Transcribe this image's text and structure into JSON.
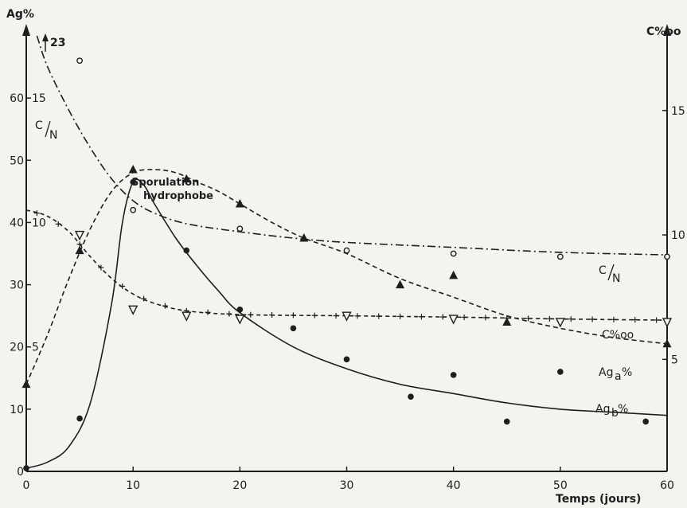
{
  "chart_data": {
    "type": "line",
    "xlabel": "Temps (jours)",
    "ylabel_left": "Ag%",
    "ylabel_left_inner": "C/N",
    "ylabel_right": "C%oo",
    "left_top_marker": "23",
    "x_ticks": [
      "0",
      "10",
      "20",
      "30",
      "40",
      "50",
      "60"
    ],
    "y_ticks_left": [
      "0",
      "10",
      "20",
      "30",
      "40",
      "50",
      "60"
    ],
    "cn_ticks": [
      "5",
      "10",
      "15"
    ],
    "y_ticks_right": [
      "5",
      "10",
      "15"
    ],
    "xlim": [
      0,
      60
    ],
    "ylim_left": [
      0,
      70
    ],
    "annotation": [
      "Sporulation",
      "hydrophobe"
    ],
    "grid": false,
    "series": [
      {
        "name": "Ag_b %",
        "label_parts": [
          "Ag",
          "b",
          " %"
        ],
        "marker": "filled-circle",
        "line": "solid",
        "points": [
          [
            0,
            0.5
          ],
          [
            5,
            8.5
          ],
          [
            10,
            46.5
          ],
          [
            15,
            35.5
          ],
          [
            20,
            26
          ],
          [
            25,
            23
          ],
          [
            30,
            18
          ],
          [
            36,
            12
          ],
          [
            40,
            15.5
          ],
          [
            45,
            8
          ],
          [
            50,
            16
          ],
          [
            58,
            8
          ]
        ],
        "curve": [
          [
            0,
            0.5
          ],
          [
            2,
            1.5
          ],
          [
            4,
            4
          ],
          [
            6,
            11
          ],
          [
            8,
            27
          ],
          [
            9,
            40
          ],
          [
            10,
            46.5
          ],
          [
            11,
            46
          ],
          [
            12,
            43
          ],
          [
            14,
            37.5
          ],
          [
            16,
            33
          ],
          [
            18,
            29
          ],
          [
            20,
            25.5
          ],
          [
            25,
            20
          ],
          [
            30,
            16.5
          ],
          [
            35,
            14
          ],
          [
            40,
            12.5
          ],
          [
            45,
            11
          ],
          [
            50,
            10
          ],
          [
            55,
            9.5
          ],
          [
            60,
            9
          ]
        ]
      },
      {
        "name": "Ag_a %",
        "label_parts": [
          "Ag",
          "a",
          "%"
        ],
        "marker": "filled-triangle",
        "line": "dashed",
        "points": [
          [
            0,
            14
          ],
          [
            5,
            35.5
          ],
          [
            10,
            48.5
          ],
          [
            15,
            47
          ],
          [
            20,
            43
          ],
          [
            26,
            37.5
          ],
          [
            35,
            30
          ],
          [
            40,
            31.5
          ],
          [
            45,
            24
          ],
          [
            60,
            20.5
          ]
        ],
        "curve": [
          [
            0,
            14
          ],
          [
            2,
            22
          ],
          [
            4,
            31
          ],
          [
            6,
            39
          ],
          [
            8,
            45
          ],
          [
            10,
            48
          ],
          [
            12,
            48.5
          ],
          [
            14,
            48
          ],
          [
            16,
            46.5
          ],
          [
            18,
            45
          ],
          [
            20,
            43
          ],
          [
            23,
            40
          ],
          [
            26,
            37.5
          ],
          [
            30,
            35
          ],
          [
            35,
            31
          ],
          [
            40,
            28
          ],
          [
            45,
            25
          ],
          [
            50,
            23
          ],
          [
            55,
            21.5
          ],
          [
            60,
            20.5
          ]
        ]
      },
      {
        "name": "C%oo",
        "marker": "open-triangle-down",
        "line": "dash-plus",
        "points": [
          [
            5,
            38
          ],
          [
            10,
            26
          ],
          [
            15,
            25
          ],
          [
            20,
            24.5
          ],
          [
            30,
            25
          ],
          [
            40,
            24.5
          ],
          [
            50,
            24
          ],
          [
            60,
            24
          ]
        ],
        "curve": [
          [
            0,
            42
          ],
          [
            2,
            41
          ],
          [
            4,
            38.5
          ],
          [
            6,
            34.5
          ],
          [
            8,
            31
          ],
          [
            10,
            28.5
          ],
          [
            12,
            27
          ],
          [
            15,
            25.8
          ],
          [
            20,
            25.2
          ],
          [
            30,
            25
          ],
          [
            40,
            24.8
          ],
          [
            50,
            24.5
          ],
          [
            60,
            24.3
          ]
        ]
      },
      {
        "name": "C/N",
        "label_parts": [
          "C",
          "N"
        ],
        "marker": "open-circle",
        "line": "dash-dot",
        "points": [
          [
            5,
            66
          ],
          [
            10,
            42
          ],
          [
            20,
            39
          ],
          [
            30,
            35.5
          ],
          [
            40,
            35
          ],
          [
            50,
            34.5
          ],
          [
            60,
            34.5
          ]
        ],
        "curve": [
          [
            1,
            70
          ],
          [
            2,
            65
          ],
          [
            4,
            58
          ],
          [
            6,
            52
          ],
          [
            8,
            47
          ],
          [
            10,
            43.5
          ],
          [
            12,
            41.5
          ],
          [
            15,
            39.8
          ],
          [
            20,
            38.5
          ],
          [
            25,
            37.5
          ],
          [
            30,
            36.8
          ],
          [
            40,
            36
          ],
          [
            50,
            35.2
          ],
          [
            60,
            34.8
          ]
        ]
      }
    ]
  }
}
